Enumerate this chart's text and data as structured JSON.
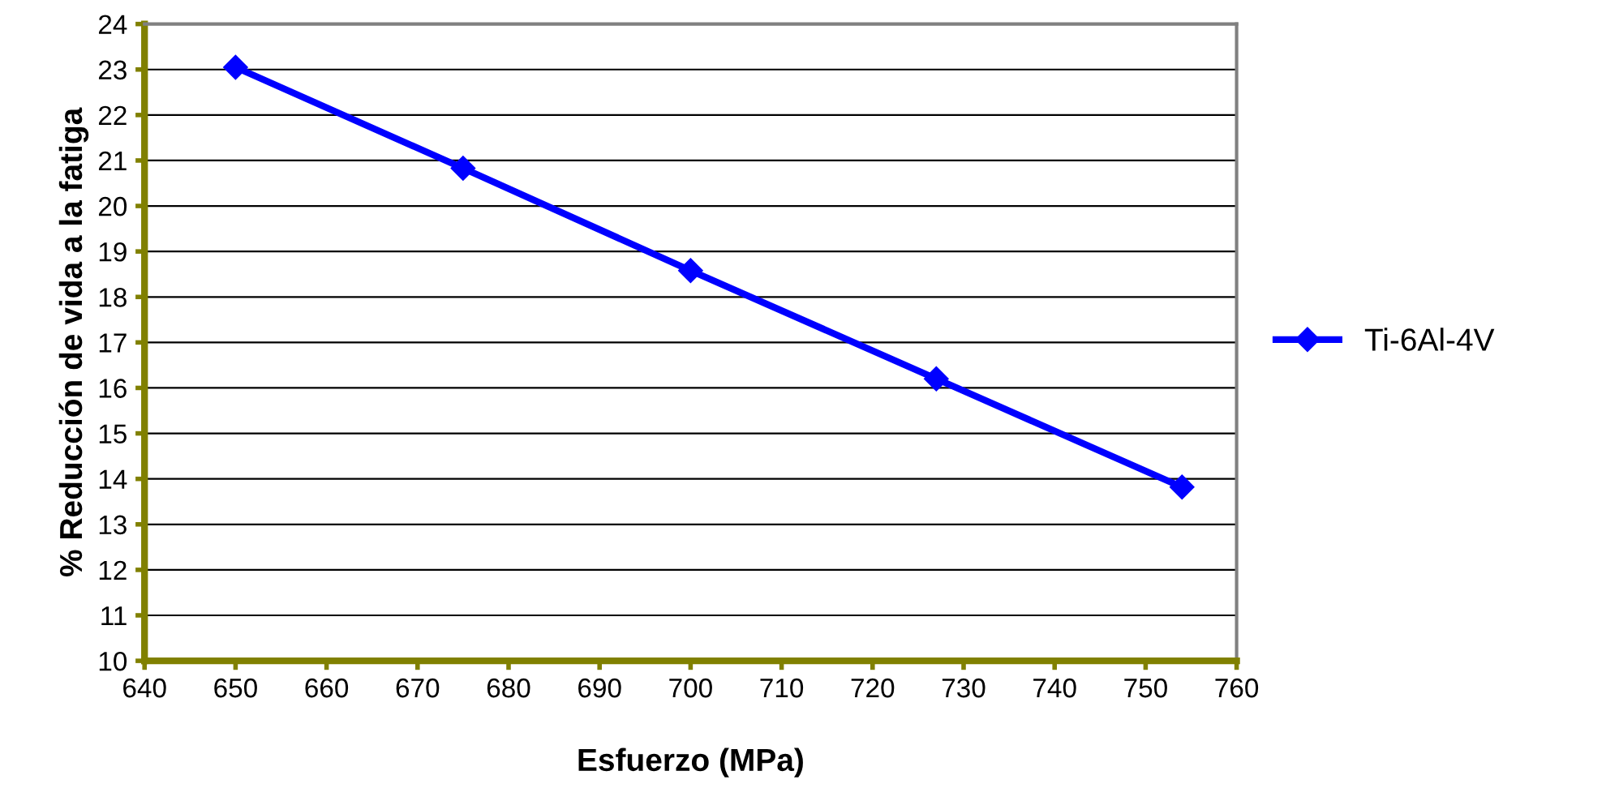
{
  "chart_data": {
    "type": "line",
    "xlabel": "Esfuerzo (MPa)",
    "ylabel": "% Reducción de vida a la fatiga",
    "x": [
      650,
      675,
      700,
      727,
      754
    ],
    "series": [
      {
        "name": "Ti-6Al-4V",
        "color": "#0000ff",
        "values": [
          23.05,
          20.83,
          18.58,
          16.2,
          13.82
        ]
      }
    ],
    "xlim": [
      640,
      760
    ],
    "xticks": [
      640,
      650,
      660,
      670,
      680,
      690,
      700,
      710,
      720,
      730,
      740,
      750,
      760
    ],
    "ylim": [
      10,
      24
    ],
    "yticks": [
      10,
      11,
      12,
      13,
      14,
      15,
      16,
      17,
      18,
      19,
      20,
      21,
      22,
      23,
      24
    ],
    "grid": "y",
    "legend": "right",
    "marker": "diamond",
    "line_style": "solid"
  }
}
